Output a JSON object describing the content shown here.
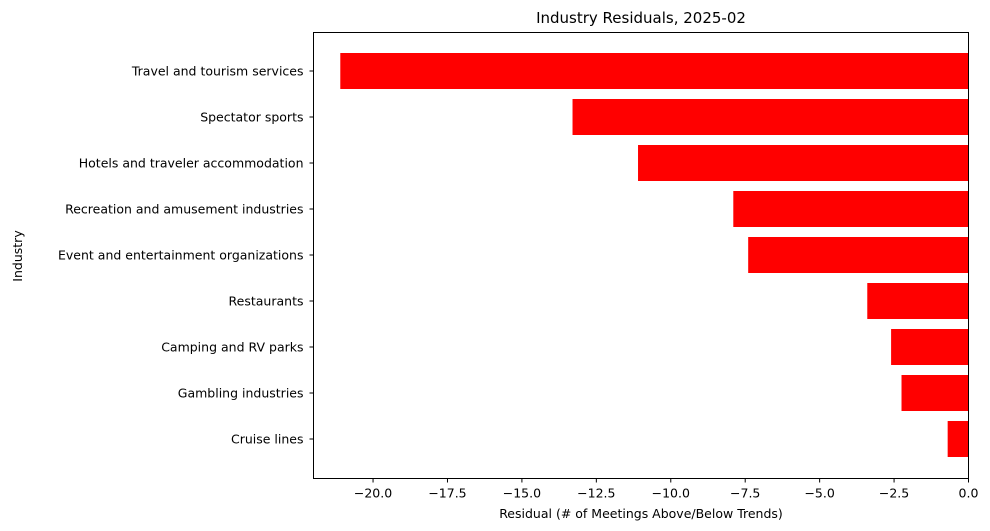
{
  "chart_data": {
    "type": "bar",
    "orientation": "horizontal",
    "title": "Industry Residuals, 2025-02",
    "xlabel": "Residual (# of Meetings Above/Below Trends)",
    "ylabel": "Industry",
    "xlim": [
      -22.0,
      0.0
    ],
    "xticks": [
      -20.0,
      -17.5,
      -15.0,
      -12.5,
      -10.0,
      -7.5,
      -5.0,
      -2.5,
      0.0
    ],
    "xtick_labels": [
      "−20.0",
      "−17.5",
      "−15.0",
      "−12.5",
      "−10.0",
      "−7.5",
      "−5.0",
      "−2.5",
      "0.0"
    ],
    "categories": [
      "Travel and tourism services",
      "Spectator sports",
      "Hotels and traveler accommodation",
      "Recreation and amusement industries",
      "Event and entertainment organizations",
      "Restaurants",
      "Camping and RV parks",
      "Gambling industries",
      "Cruise lines"
    ],
    "values": [
      -21.1,
      -13.3,
      -11.1,
      -7.9,
      -7.4,
      -3.4,
      -2.6,
      -2.25,
      -0.7
    ],
    "bar_color": "#ff0000",
    "grid": false,
    "legend": "none"
  }
}
